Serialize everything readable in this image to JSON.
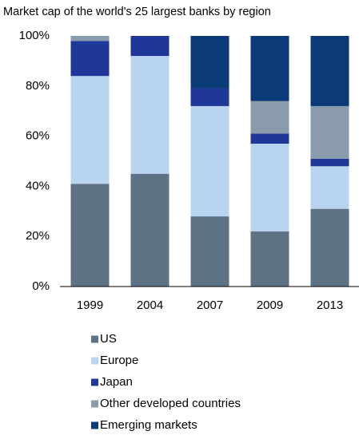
{
  "chart_data": {
    "type": "stacked_bar",
    "title": "Market cap of the world's 25 largest banks by region",
    "categories": [
      "1999",
      "2004",
      "2007",
      "2009",
      "2013"
    ],
    "series": [
      {
        "name": "US",
        "color": "#5f7387",
        "values": [
          41,
          45,
          28,
          22,
          31
        ]
      },
      {
        "name": "Europe",
        "color": "#b8d4f0",
        "values": [
          43,
          47,
          44,
          35,
          17
        ]
      },
      {
        "name": "Japan",
        "color": "#1f3799",
        "values": [
          14,
          8,
          7,
          4,
          3
        ]
      },
      {
        "name": "Other developed countries",
        "color": "#8a9bad",
        "values": [
          2,
          0,
          0,
          13,
          21
        ]
      },
      {
        "name": "Emerging markets",
        "color": "#0a3a78",
        "values": [
          0,
          0,
          21,
          26,
          28
        ]
      }
    ],
    "ylim": [
      0,
      100
    ],
    "yticks": [
      {
        "value": 0,
        "label": "0%"
      },
      {
        "value": 20,
        "label": "20%"
      },
      {
        "value": 40,
        "label": "40%"
      },
      {
        "value": 60,
        "label": "60%"
      },
      {
        "value": 80,
        "label": "80%"
      },
      {
        "value": 100,
        "label": "100%"
      }
    ]
  }
}
